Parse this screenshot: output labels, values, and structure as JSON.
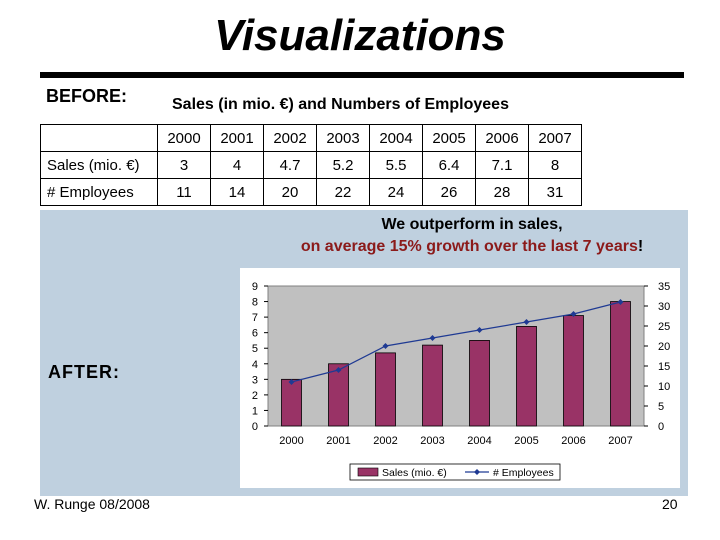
{
  "title": "Visualizations",
  "before_label": "BEFORE:",
  "table": {
    "title": "Sales (in mio. €) and Numbers of Employees",
    "years": [
      "2000",
      "2001",
      "2002",
      "2003",
      "2004",
      "2005",
      "2006",
      "2007"
    ],
    "rows": [
      {
        "label": "Sales (mio. €)",
        "values": [
          "3",
          "4",
          "4.7",
          "5.2",
          "5.5",
          "6.4",
          "7.1",
          "8"
        ]
      },
      {
        "label": "# Employees",
        "values": [
          "11",
          "14",
          "20",
          "22",
          "24",
          "26",
          "28",
          "31"
        ]
      }
    ]
  },
  "after_label": "AFTER:",
  "claim": {
    "line1": "We outperform in sales,",
    "line2": "on average 15% growth over the last 7 years",
    "excl": "!"
  },
  "footer": {
    "author": "W. Runge 08/2008",
    "page": "20"
  },
  "colors": {
    "bar": "#993366",
    "line": "#1f3a93",
    "plot_bg": "#c0c0c0",
    "panel_bg": "#bfd0df"
  },
  "chart_data": {
    "type": "bar",
    "categories": [
      "2000",
      "2001",
      "2002",
      "2003",
      "2004",
      "2005",
      "2006",
      "2007"
    ],
    "series": [
      {
        "name": "Sales (mio. €)",
        "type": "bar",
        "axis": "left",
        "values": [
          3,
          4,
          4.7,
          5.2,
          5.5,
          6.4,
          7.1,
          8
        ]
      },
      {
        "name": "# Employees",
        "type": "line",
        "axis": "right",
        "values": [
          11,
          14,
          20,
          22,
          24,
          26,
          28,
          31
        ]
      }
    ],
    "ylim_left": [
      0,
      9
    ],
    "yticks_left": [
      "0",
      "1",
      "2",
      "3",
      "4",
      "5",
      "6",
      "7",
      "8",
      "9"
    ],
    "ylim_right": [
      0,
      35
    ],
    "yticks_right": [
      "0",
      "5",
      "10",
      "15",
      "20",
      "25",
      "30",
      "35"
    ],
    "legend": "bottom",
    "grid": false
  }
}
